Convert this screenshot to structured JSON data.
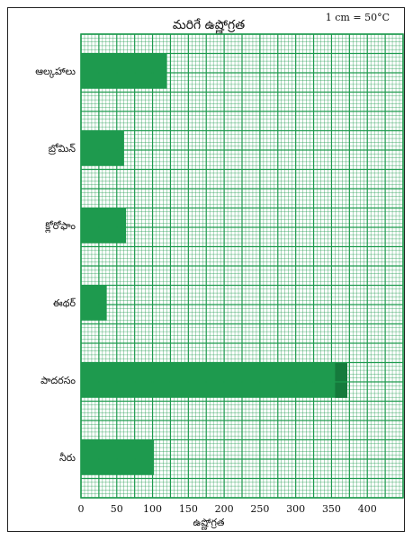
{
  "header": {
    "title": "మరిగే ఉష్ణోగ్రత",
    "scale_note": "1 cm = 50°C"
  },
  "chart_data": {
    "type": "bar",
    "orientation": "horizontal",
    "title": "మరిగే ఉష్ణోగ్రత",
    "xlabel": "ఉష్ణోగ్రత",
    "ylabel": "",
    "categories": [
      "ఆల్కహాలు",
      "బ్రోమిన్",
      "క్లోరోఫాం",
      "ఈథర్",
      "పాదరసం",
      "నీరు"
    ],
    "values": [
      120,
      60,
      63,
      36,
      372,
      102
    ],
    "xlim": [
      0,
      450
    ],
    "xticks": [
      0,
      50,
      100,
      150,
      200,
      250,
      300,
      350,
      400
    ],
    "grid": true,
    "colors": {
      "bar": "#1e9a4e",
      "bar_highlight": "#157a3c",
      "grid": "#1e9a4e",
      "background": "#ffffff"
    }
  }
}
